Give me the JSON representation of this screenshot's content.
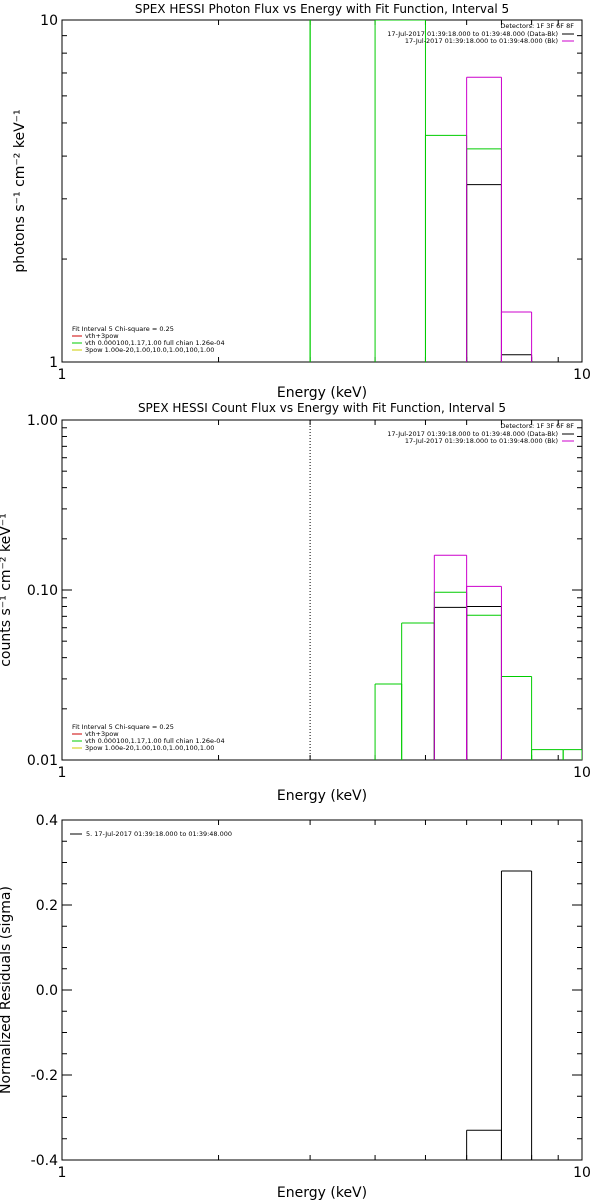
{
  "chart_data": [
    {
      "type": "line",
      "title": "SPEX HESSI Photon Flux vs Energy with Fit Function, Interval 5",
      "xlabel": "Energy (keV)",
      "ylabel": "photons s⁻¹ cm⁻² keV⁻¹",
      "xscale": "log",
      "yscale": "log",
      "xlim": [
        1,
        10
      ],
      "ylim": [
        1,
        10
      ],
      "xticks": [
        {
          "v": 1,
          "label": "1"
        },
        {
          "v": 10,
          "label": "10"
        }
      ],
      "yticks": [
        {
          "v": 1,
          "label": "1"
        },
        {
          "v": 10,
          "label": "10"
        }
      ],
      "vline": {
        "x": 3.0,
        "style": "solid",
        "color": "#00cc00"
      },
      "legend_top_right": {
        "header": "Detectors: 1F 3F 6F 8F",
        "entries": [
          {
            "text": "17-Jul-2017 01:39:18.000 to 01:39:48.000 (Data-Bk)",
            "color": "#000000"
          },
          {
            "text": "17-Jul-2017 01:39:18.000 to 01:39:48.000 (Bk)",
            "color": "#cc00cc"
          }
        ]
      },
      "legend_bottom_left": {
        "header": "Fit Interval 5   Chi-square = 0.25",
        "entries": [
          {
            "text": "vth+3pow",
            "color": "#cc0000"
          },
          {
            "text": "vth 0.000100,1.17,1.00  full chian 1.26e-04",
            "color": "#00cc00"
          },
          {
            "text": "3pow 1.00e-20,1.00,10.0,1.00,100,1.00",
            "color": "#cccc00"
          }
        ]
      },
      "series": [
        {
          "color": "#00cc00",
          "steps": [
            {
              "x0": 3.0,
              "x1": 3.0,
              "y": 10
            },
            {
              "x0": 4.0,
              "x1": 5.0,
              "y": 10
            },
            {
              "x0": 5.0,
              "x1": 6.0,
              "y": 4.6
            },
            {
              "x0": 6.0,
              "x1": 7.0,
              "y": 4.2
            }
          ]
        },
        {
          "color": "#000000",
          "steps": [
            {
              "x0": 6.0,
              "x1": 7.0,
              "y": 3.3
            },
            {
              "x0": 7.0,
              "x1": 8.0,
              "y": 1.05
            }
          ]
        },
        {
          "color": "#cc00cc",
          "steps": [
            {
              "x0": 6.0,
              "x1": 7.0,
              "y": 6.8
            },
            {
              "x0": 7.0,
              "x1": 8.0,
              "y": 1.4
            }
          ]
        }
      ]
    },
    {
      "type": "line",
      "title": "SPEX HESSI Count Flux vs Energy with Fit Function, Interval 5",
      "xlabel": "Energy (keV)",
      "ylabel": "counts s⁻¹ cm⁻² keV⁻¹",
      "xscale": "log",
      "yscale": "log",
      "xlim": [
        1,
        10
      ],
      "ylim": [
        0.01,
        1.0
      ],
      "xticks": [
        {
          "v": 1,
          "label": "1"
        },
        {
          "v": 10,
          "label": "10"
        }
      ],
      "yticks": [
        {
          "v": 0.01,
          "label": "0.01"
        },
        {
          "v": 0.1,
          "label": "0.10"
        },
        {
          "v": 1.0,
          "label": "1.00"
        }
      ],
      "vline": {
        "x": 3.0,
        "style": "dotted",
        "color": "#000000"
      },
      "legend_top_right": {
        "header": "Detectors: 1F 3F 6F 8F",
        "entries": [
          {
            "text": "17-Jul-2017 01:39:18.000 to 01:39:48.000 (Data-Bk)",
            "color": "#000000"
          },
          {
            "text": "17-Jul-2017 01:39:18.000 to 01:39:48.000 (Bk)",
            "color": "#cc00cc"
          }
        ]
      },
      "legend_bottom_left": {
        "header": "Fit Interval 5   Chi-square = 0.25",
        "entries": [
          {
            "text": "vth+3pow",
            "color": "#cc0000"
          },
          {
            "text": "vth 0.000100,1.17,1.00  full chian 1.26e-04",
            "color": "#00cc00"
          },
          {
            "text": "3pow 1.00e-20,1.00,10.0,1.00,100,1.00",
            "color": "#cccc00"
          }
        ]
      },
      "series": [
        {
          "color": "#00cc00",
          "steps": [
            {
              "x0": 4.0,
              "x1": 4.5,
              "y": 0.028
            },
            {
              "x0": 4.5,
              "x1": 5.2,
              "y": 0.064
            },
            {
              "x0": 5.2,
              "x1": 6.0,
              "y": 0.097
            },
            {
              "x0": 6.0,
              "x1": 7.0,
              "y": 0.071
            },
            {
              "x0": 7.0,
              "x1": 8.0,
              "y": 0.031
            },
            {
              "x0": 8.0,
              "x1": 9.2,
              "y": 0.0115
            },
            {
              "x0": 9.2,
              "x1": 10.0,
              "y": 0.0115
            }
          ]
        },
        {
          "color": "#000000",
          "steps": [
            {
              "x0": 5.2,
              "x1": 6.0,
              "y": 0.079
            },
            {
              "x0": 6.0,
              "x1": 7.0,
              "y": 0.08
            }
          ]
        },
        {
          "color": "#cc00cc",
          "steps": [
            {
              "x0": 5.2,
              "x1": 6.0,
              "y": 0.16
            },
            {
              "x0": 6.0,
              "x1": 7.0,
              "y": 0.105
            }
          ]
        }
      ]
    },
    {
      "type": "line",
      "title": "",
      "xlabel": "Energy (keV)",
      "ylabel": "Normalized Residuals (sigma)",
      "xscale": "log",
      "yscale": "linear",
      "xlim": [
        1,
        10
      ],
      "ylim": [
        -0.4,
        0.4
      ],
      "xticks": [
        {
          "v": 1,
          "label": "1"
        },
        {
          "v": 10,
          "label": "10"
        }
      ],
      "yticks": [
        {
          "v": -0.4,
          "label": "-0.4"
        },
        {
          "v": -0.2,
          "label": "-0.2"
        },
        {
          "v": 0.0,
          "label": "0.0"
        },
        {
          "v": 0.2,
          "label": "0.2"
        },
        {
          "v": 0.4,
          "label": "0.4"
        }
      ],
      "legend_top_left": {
        "entries": [
          {
            "text": "5. 17-Jul-2017 01:39:18.000 to 01:39:48.000",
            "color": "#000000"
          }
        ]
      },
      "series": [
        {
          "color": "#000000",
          "steps": [
            {
              "x0": 6.0,
              "x1": 7.0,
              "y": -0.33
            },
            {
              "x0": 7.0,
              "x1": 8.0,
              "y": 0.28
            }
          ]
        }
      ]
    }
  ]
}
